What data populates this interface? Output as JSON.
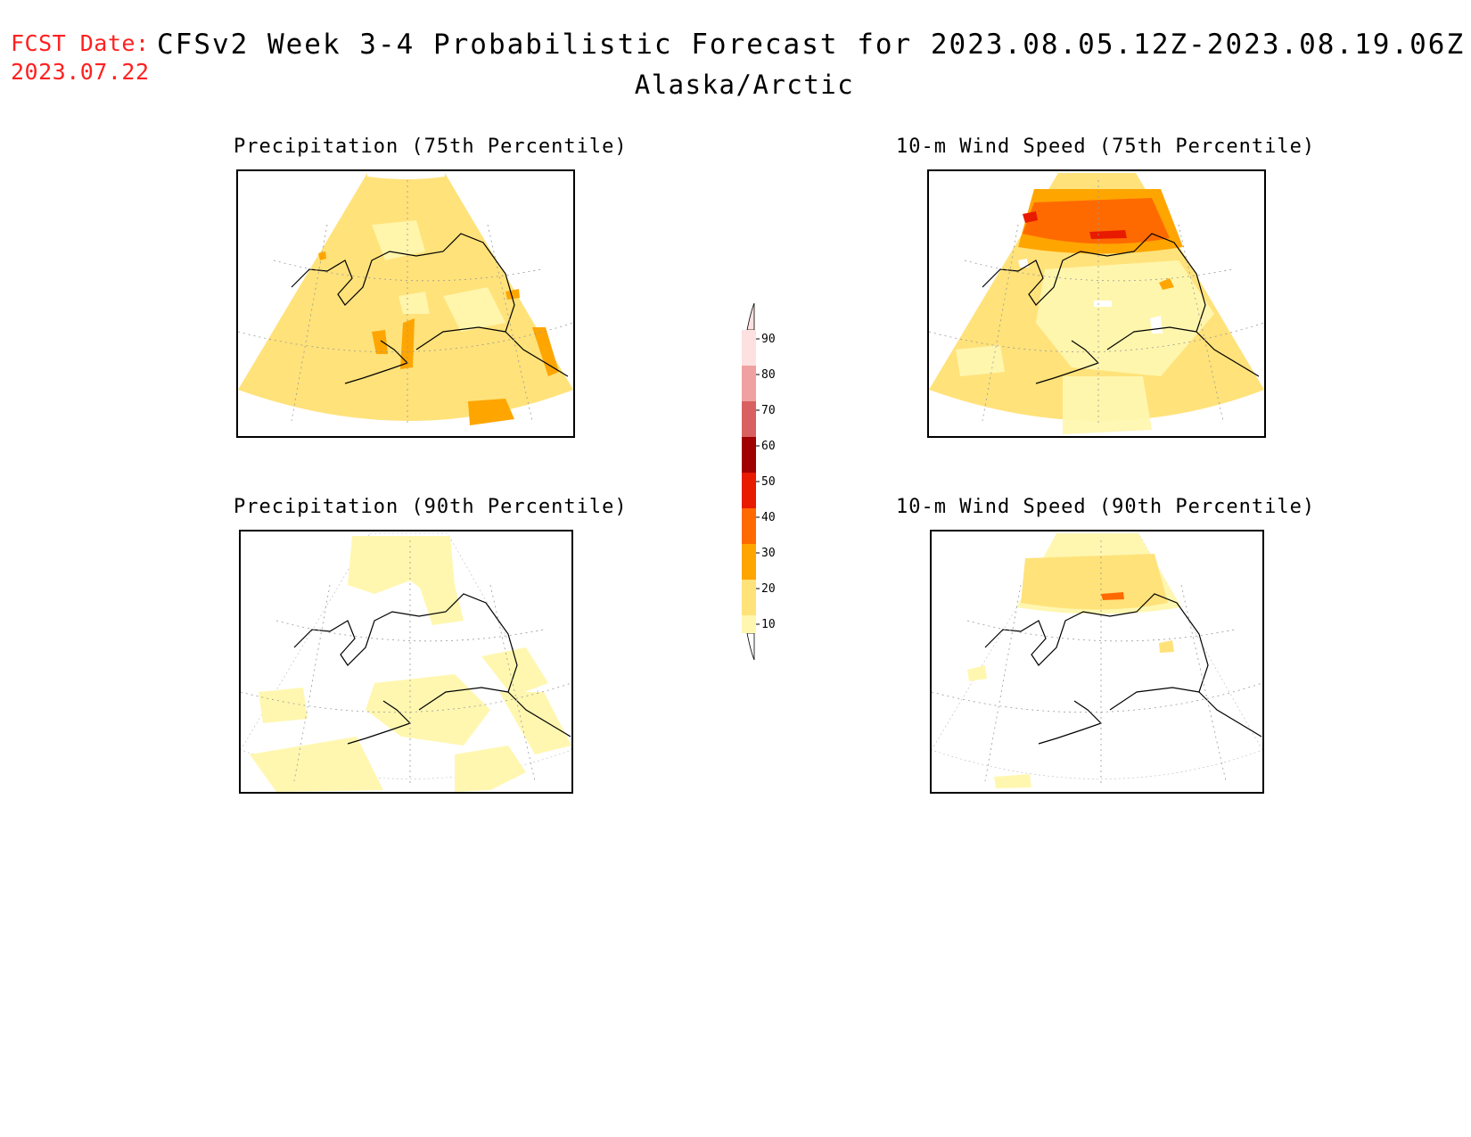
{
  "header": {
    "fcst_label": "FCST Date:",
    "fcst_date": "2023.07.22",
    "title": "CFSv2 Week 3-4 Probabilistic Forecast for 2023.08.05.12Z-2023.08.19.06Z",
    "region": "Alaska/Arctic"
  },
  "panels": {
    "precip75": {
      "title": "Precipitation (75th Percentile)"
    },
    "wind75": {
      "title": "10-m Wind Speed (75th Percentile)"
    },
    "precip90": {
      "title": "Precipitation (90th Percentile)"
    },
    "wind90": {
      "title": "10-m Wind Speed (90th Percentile)"
    }
  },
  "colorbar": {
    "labels": [
      "90",
      "80",
      "70",
      "60",
      "50",
      "40",
      "30",
      "20",
      "10"
    ],
    "colors": {
      "c10": "#fff7b0",
      "c20": "#ffe27a",
      "c30": "#ffa500",
      "c40": "#ff6a00",
      "c50": "#e81a00",
      "c60": "#a00000",
      "c70": "#d96060",
      "c80": "#f0a0a0",
      "c90": "#fde0e0"
    }
  }
}
